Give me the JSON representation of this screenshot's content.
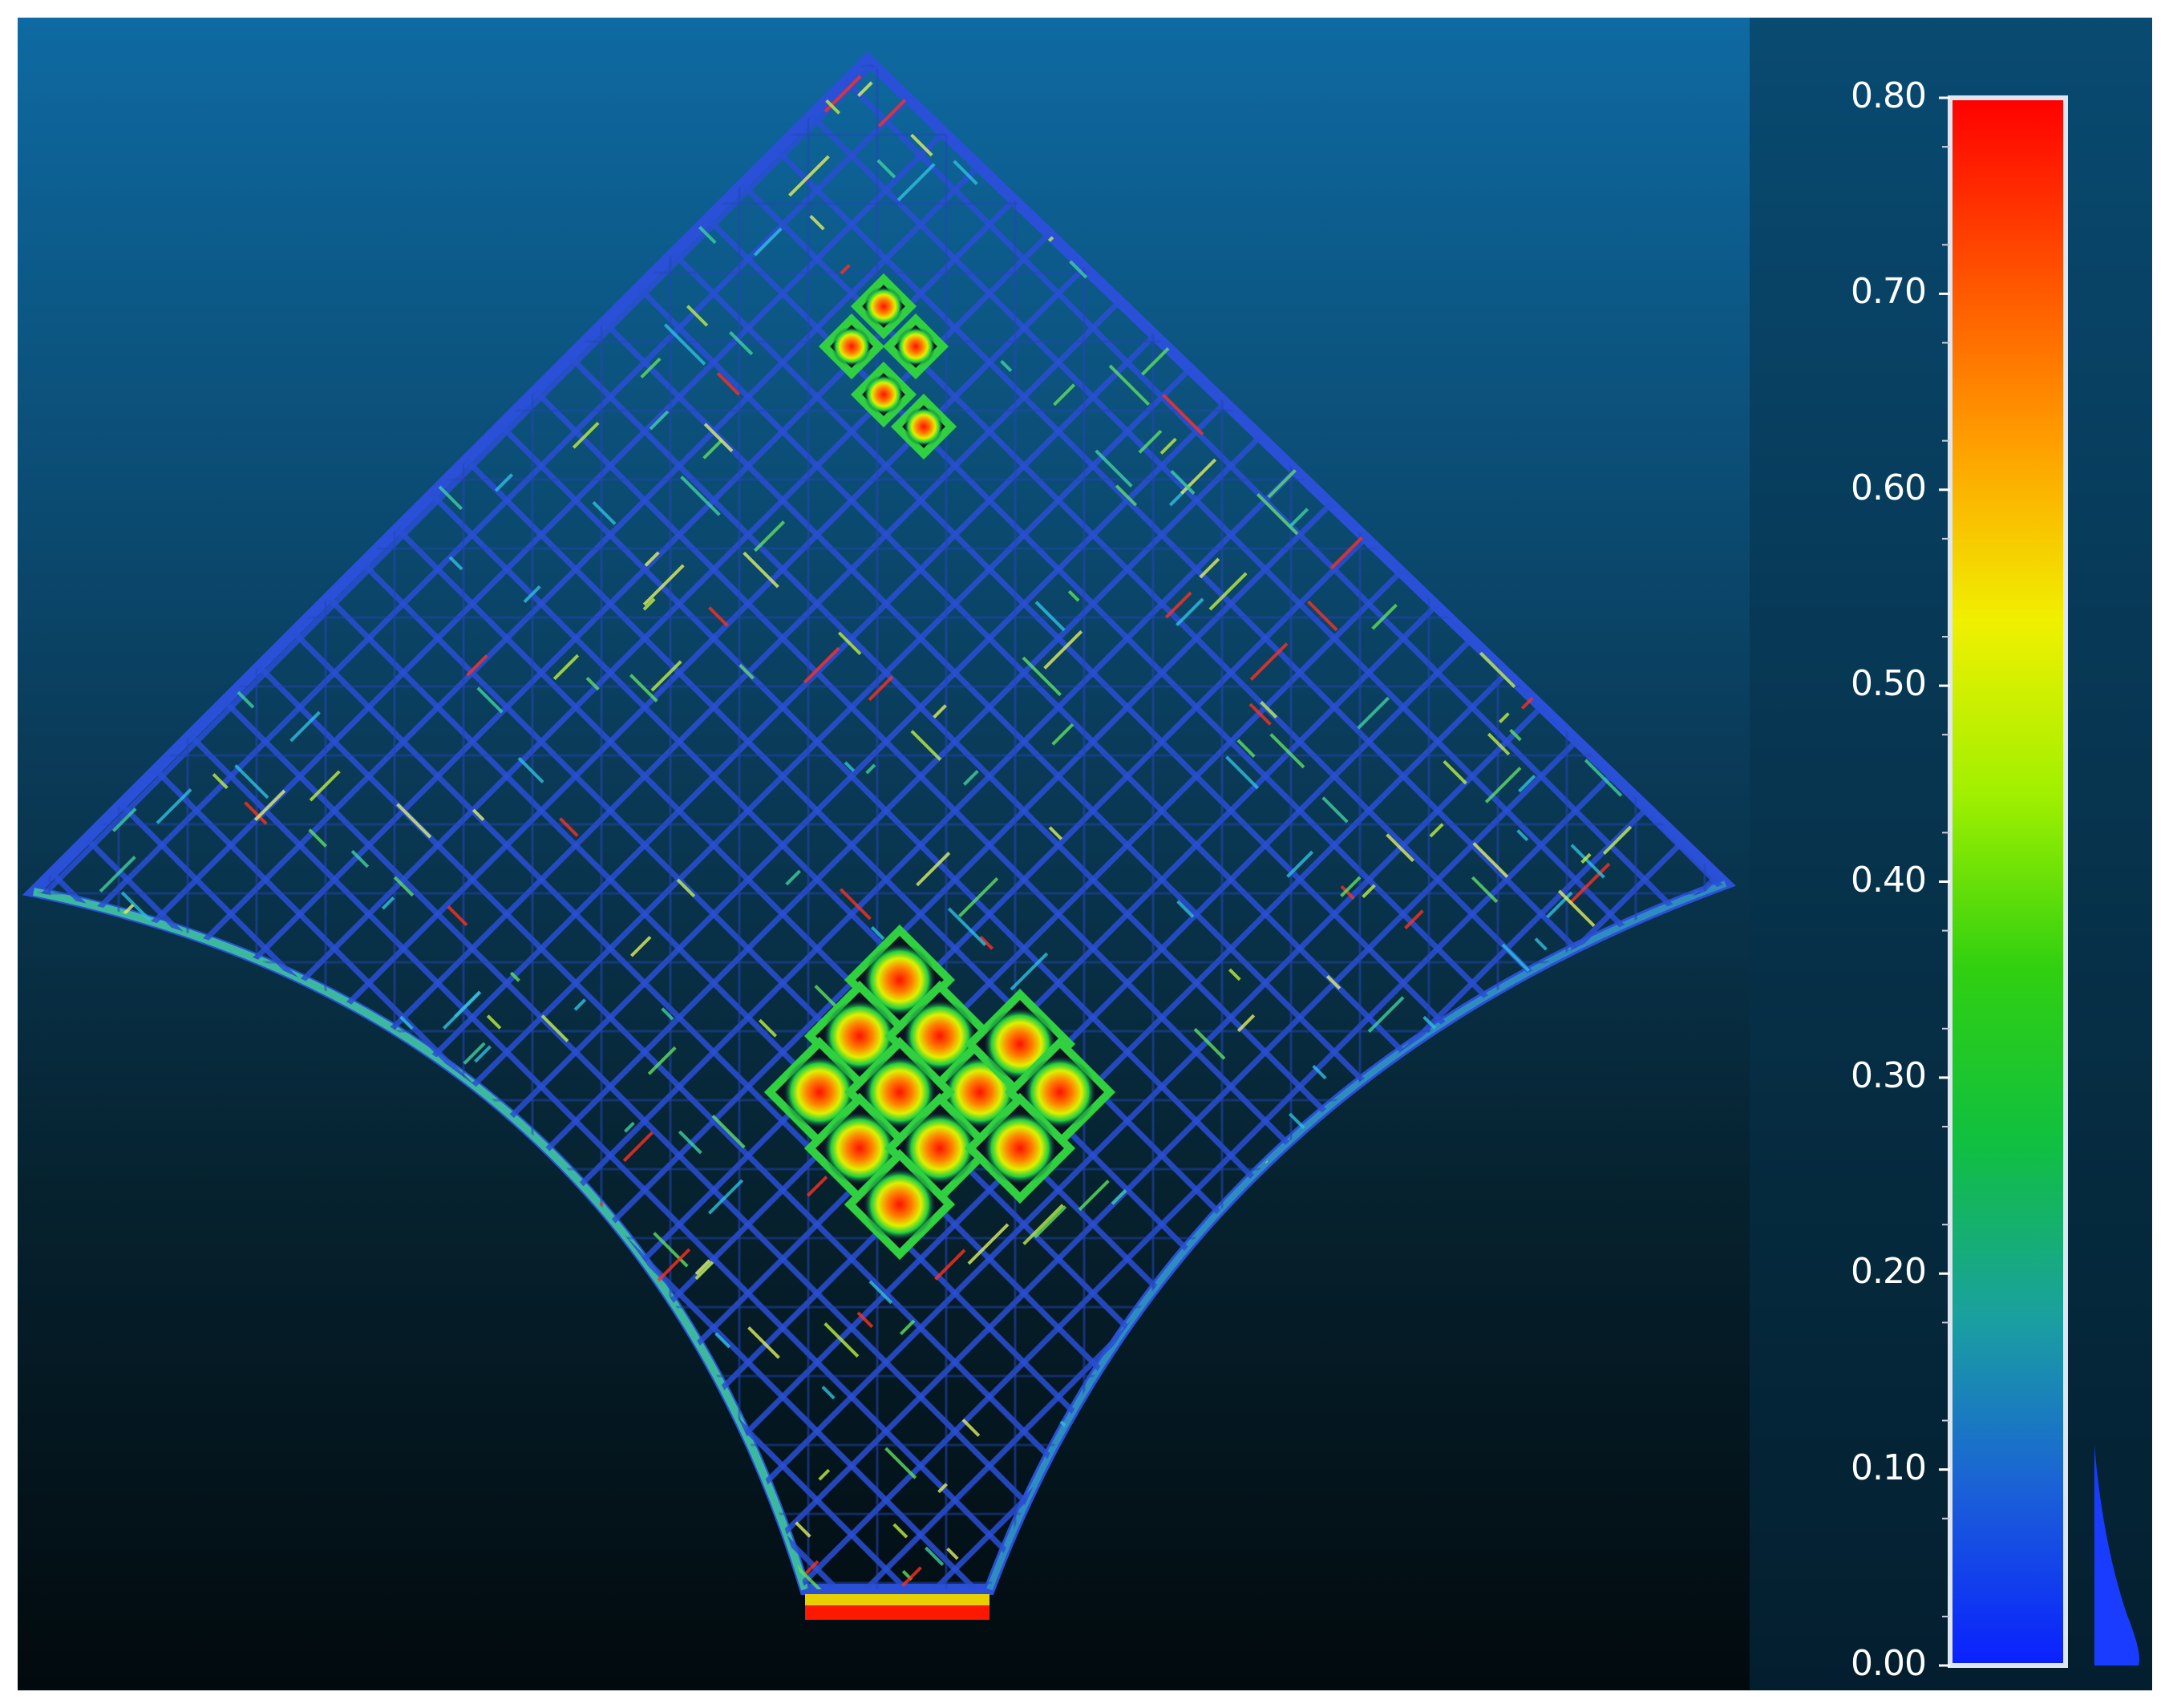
{
  "colors": {
    "background_top": "#0e6aa2",
    "background_bottom": "#020a0e",
    "structure_low": "#2a4fd4",
    "structure_mid": "#2bbf2b",
    "structure_high": "#f03a00",
    "scale_stops": [
      "#0a20ff",
      "#1a60d8",
      "#1aa0a0",
      "#10c040",
      "#30d010",
      "#a0f000",
      "#f0f000",
      "#ffa000",
      "#ff5000",
      "#ff0000"
    ],
    "histogram_fill": "#1a3cff",
    "scale_border": "#e0e6f0"
  },
  "color_scale": {
    "min": 0.0,
    "max": 0.8,
    "ticks": [
      "0.00",
      "0.10",
      "0.20",
      "0.30",
      "0.40",
      "0.50",
      "0.60",
      "0.70",
      "0.80"
    ]
  }
}
